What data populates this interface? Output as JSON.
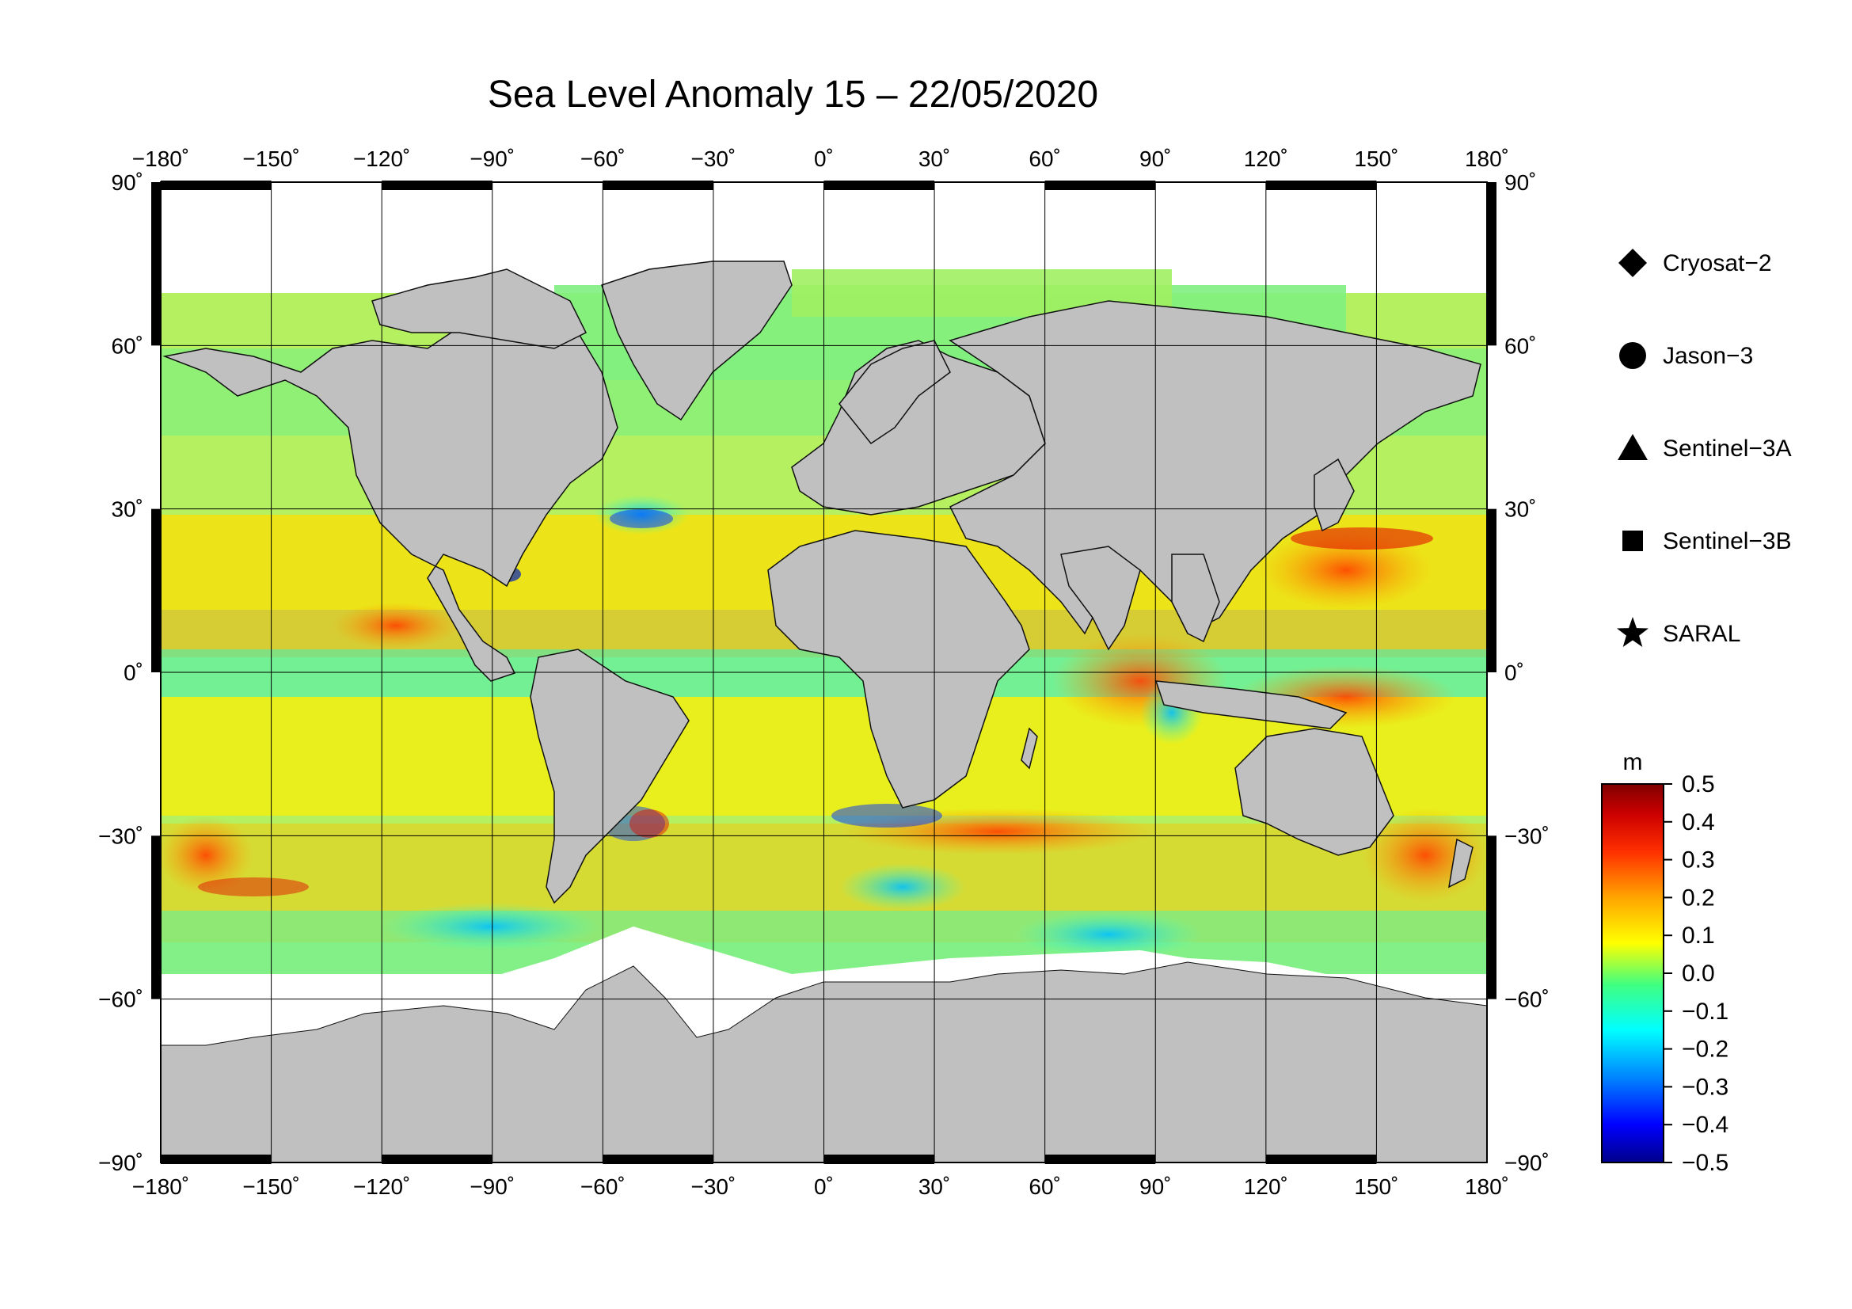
{
  "title": "Sea Level Anomaly 15 – 22/05/2020",
  "map": {
    "lon_ticks": [
      "−180˚",
      "−150˚",
      "−120˚",
      "−90˚",
      "−60˚",
      "−30˚",
      "0˚",
      "30˚",
      "60˚",
      "90˚",
      "120˚",
      "150˚",
      "180˚"
    ],
    "lat_ticks": [
      "90˚",
      "60˚",
      "30˚",
      "0˚",
      "−30˚",
      "−60˚",
      "−90˚"
    ],
    "lon_values": [
      -180,
      -150,
      -120,
      -90,
      -60,
      -30,
      0,
      30,
      60,
      90,
      120,
      150,
      180
    ],
    "lat_values": [
      90,
      60,
      30,
      0,
      -30,
      -60,
      -90
    ],
    "land_color": "#c0c0c0",
    "ice_color": "#ffffff",
    "grid": true
  },
  "satellites": [
    {
      "label": "Cryosat−2",
      "symbol": "diamond"
    },
    {
      "label": "Jason−3",
      "symbol": "circle"
    },
    {
      "label": "Sentinel−3A",
      "symbol": "triangle"
    },
    {
      "label": "Sentinel−3B",
      "symbol": "square"
    },
    {
      "label": "SARAL",
      "symbol": "star"
    }
  ],
  "colorbar": {
    "unit": "m",
    "ticks": [
      "0.5",
      "0.4",
      "0.3",
      "0.2",
      "0.1",
      "0.0",
      "−0.1",
      "−0.2",
      "−0.3",
      "−0.4",
      "−0.5"
    ],
    "min": -0.5,
    "max": 0.5,
    "colors": [
      "#00008b",
      "#0000ff",
      "#0080ff",
      "#00ffff",
      "#40ff80",
      "#ffff00",
      "#ffa500",
      "#ff3000",
      "#cc0000",
      "#800000"
    ]
  }
}
